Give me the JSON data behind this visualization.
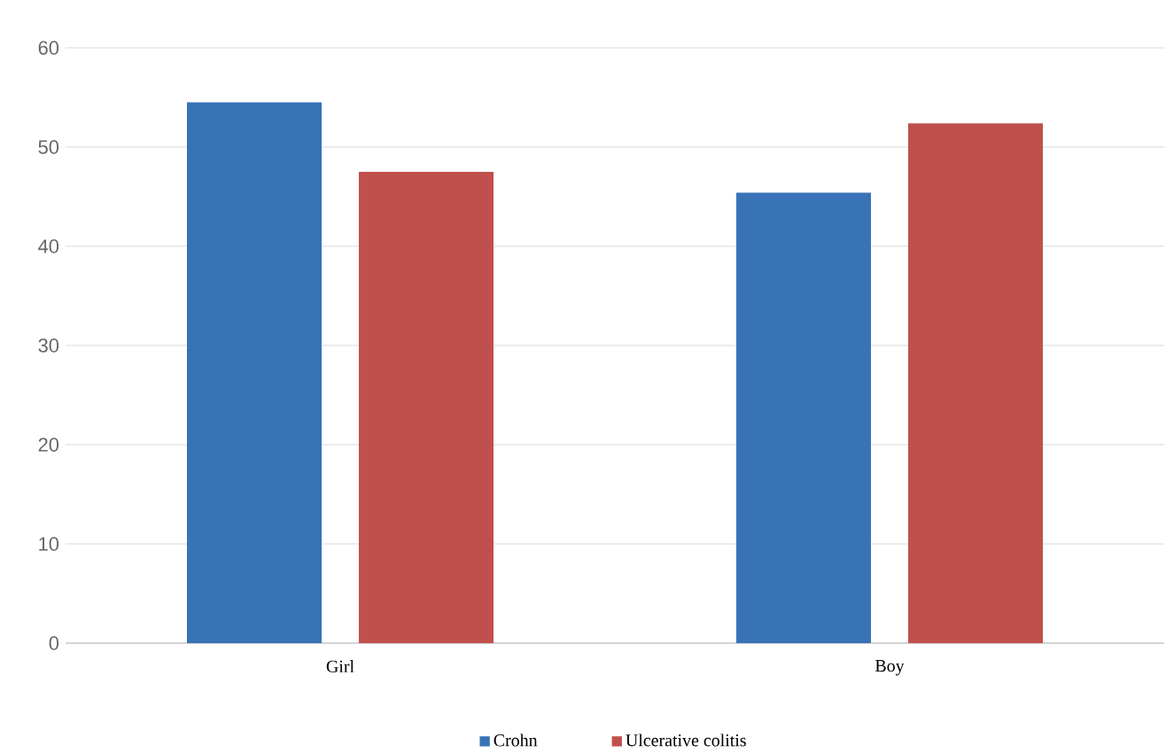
{
  "chart_data": {
    "type": "bar",
    "categories": [
      "Girl",
      "Boy"
    ],
    "series": [
      {
        "name": "Crohn",
        "color": "#3873b8",
        "values": [
          54.5,
          45.4
        ]
      },
      {
        "name": "Ulcerative colitis",
        "color": "#c0504d",
        "values": [
          47.5,
          52.4
        ]
      }
    ],
    "ylim": [
      0,
      60
    ],
    "yticks": [
      0,
      10,
      20,
      30,
      40,
      50,
      60
    ],
    "grid": "y",
    "legend": "bottom"
  }
}
